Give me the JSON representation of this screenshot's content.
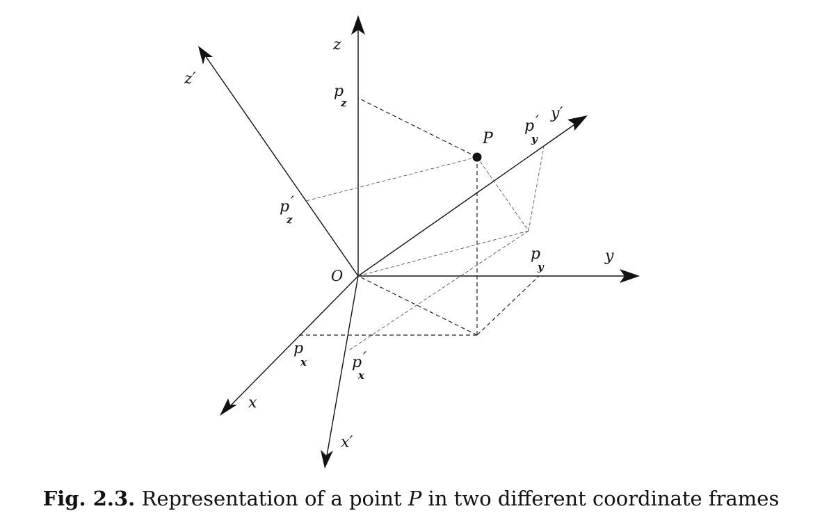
{
  "figure": {
    "labels": {
      "z": "z",
      "z_prime": "z′",
      "y": "y",
      "y_prime": "y′",
      "x": "x",
      "x_prime": "x′",
      "origin": "O",
      "point": "P",
      "p": "p",
      "sub_x": "x",
      "sub_y": "y",
      "sub_z": "z",
      "prime": "′"
    }
  },
  "caption": {
    "number": "Fig. 2.3.",
    "text_before": "Representation of a point",
    "variable": "P",
    "text_after": "in two different coordinate frames"
  }
}
